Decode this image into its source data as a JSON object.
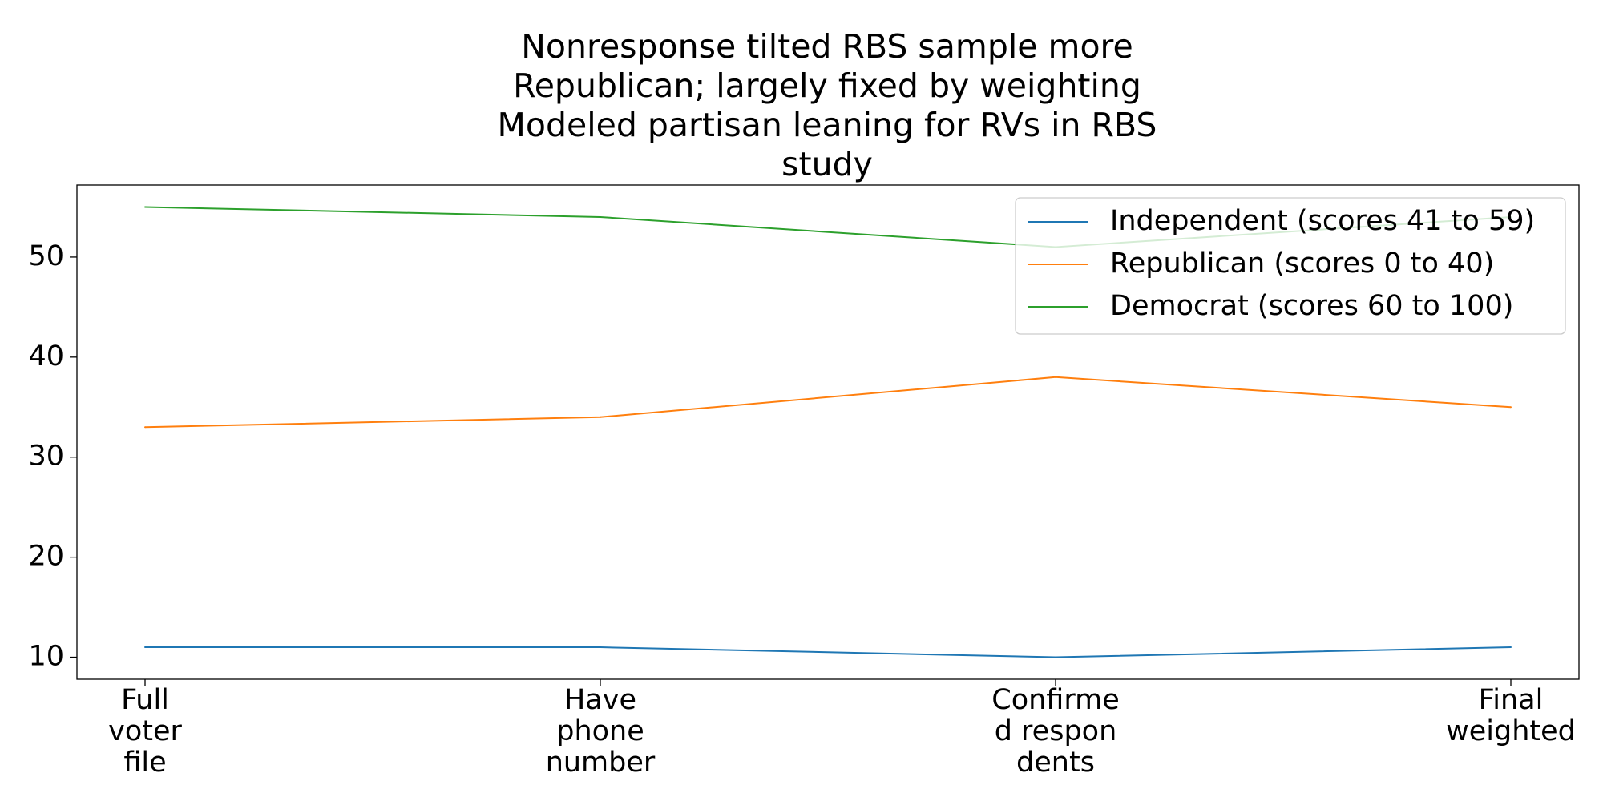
{
  "chart_data": {
    "type": "line",
    "title_lines": [
      "Nonresponse tilted RBS sample more",
      "Republican; largely fixed by weighting",
      "Modeled partisan leaning for RVs in RBS",
      "study"
    ],
    "categories": [
      [
        "Full",
        "voter",
        "file"
      ],
      [
        "Have",
        "phone",
        "number"
      ],
      [
        "Confirme",
        "d respon",
        "dents"
      ],
      [
        "Final",
        "weighted"
      ]
    ],
    "series": [
      {
        "name": "Independent (scores 41 to 59)",
        "color": "#1f77b4",
        "values": [
          11,
          11,
          10,
          11
        ]
      },
      {
        "name": "Republican (scores 0 to 40)",
        "color": "#ff7f0e",
        "values": [
          33,
          34,
          38,
          35
        ]
      },
      {
        "name": "Democrat (scores 60 to 100)",
        "color": "#2ca02c",
        "values": [
          55,
          54,
          51,
          54
        ]
      }
    ],
    "yticks": [
      10,
      20,
      30,
      40,
      50
    ],
    "ylim": [
      7.8,
      57.2
    ],
    "grid": false,
    "legend_position": "top-right",
    "xlabel": "",
    "ylabel": ""
  }
}
